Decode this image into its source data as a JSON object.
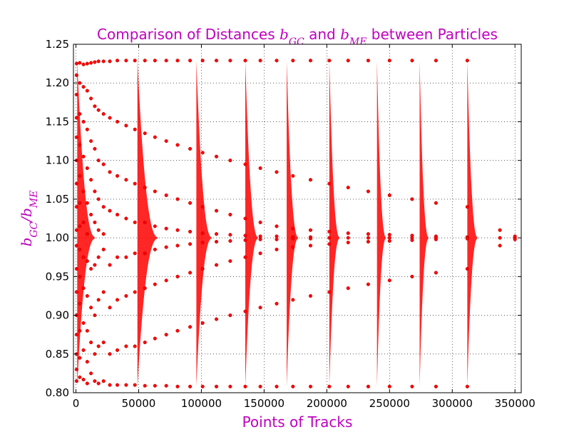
{
  "chart_data": {
    "type": "scatter",
    "title": {
      "prefix": "Comparison of Distances ",
      "var1": "b",
      "var1_sub": "GC",
      "mid": " and ",
      "var2": "b",
      "var2_sub": "ME",
      "suffix": " between Particles"
    },
    "xlabel": "Points of Tracks",
    "ylabel": {
      "num": "b",
      "num_sub": "GC",
      "slash": "/",
      "den": "b",
      "den_sub": "ME"
    },
    "xlim": [
      -2000,
      355000
    ],
    "ylim": [
      0.8,
      1.25
    ],
    "x_ticks": [
      0,
      50000,
      100000,
      150000,
      200000,
      250000,
      300000,
      350000
    ],
    "x_tick_labels": [
      "0",
      "50000",
      "100000",
      "150000",
      "200000",
      "250000",
      "300000",
      "350000"
    ],
    "y_ticks": [
      0.8,
      0.85,
      0.9,
      0.95,
      1.0,
      1.05,
      1.1,
      1.15,
      1.2,
      1.25
    ],
    "y_tick_labels": [
      "0.80",
      "0.85",
      "0.90",
      "0.95",
      "1.00",
      "1.05",
      "1.10",
      "1.15",
      "1.20",
      "1.25"
    ],
    "grid": true,
    "marker_color": "#ff0000",
    "marker_edge_color": "#b00000",
    "title_color": "#bf00bf",
    "series": [
      {
        "points": [
          [
            500,
            1.225
          ],
          [
            500,
            1.21
          ],
          [
            500,
            1.185
          ],
          [
            500,
            1.155
          ],
          [
            500,
            1.13
          ],
          [
            500,
            1.1
          ],
          [
            500,
            1.07
          ],
          [
            500,
            1.04
          ],
          [
            500,
            1.01
          ],
          [
            500,
            0.99
          ],
          [
            500,
            0.96
          ],
          [
            500,
            0.93
          ],
          [
            500,
            0.9
          ],
          [
            500,
            0.875
          ],
          [
            500,
            0.85
          ],
          [
            500,
            0.83
          ],
          [
            500,
            0.815
          ],
          [
            3000,
            1.226
          ],
          [
            3000,
            1.2
          ],
          [
            3000,
            1.16
          ],
          [
            3000,
            1.12
          ],
          [
            3000,
            1.08
          ],
          [
            3000,
            1.045
          ],
          [
            3000,
            1.015
          ],
          [
            3000,
            0.985
          ],
          [
            3000,
            0.95
          ],
          [
            3000,
            0.915
          ],
          [
            3000,
            0.88
          ],
          [
            3000,
            0.845
          ],
          [
            3000,
            0.82
          ],
          [
            6000,
            1.224
          ],
          [
            6000,
            1.195
          ],
          [
            6000,
            1.15
          ],
          [
            6000,
            1.105
          ],
          [
            6000,
            1.06
          ],
          [
            6000,
            1.02
          ],
          [
            6000,
            0.975
          ],
          [
            6000,
            0.935
          ],
          [
            6000,
            0.89
          ],
          [
            6000,
            0.855
          ],
          [
            6000,
            0.817
          ],
          [
            9000,
            1.225
          ],
          [
            9000,
            1.19
          ],
          [
            9000,
            1.14
          ],
          [
            9000,
            1.09
          ],
          [
            9000,
            1.045
          ],
          [
            9000,
            1.005
          ],
          [
            9000,
            0.97
          ],
          [
            9000,
            0.925
          ],
          [
            9000,
            0.88
          ],
          [
            9000,
            0.84
          ],
          [
            9000,
            0.812
          ],
          [
            12000,
            1.226
          ],
          [
            12000,
            1.18
          ],
          [
            12000,
            1.125
          ],
          [
            12000,
            1.075
          ],
          [
            12000,
            1.03
          ],
          [
            12000,
            0.96
          ],
          [
            12000,
            0.91
          ],
          [
            12000,
            0.865
          ],
          [
            12000,
            0.825
          ],
          [
            15000,
            1.227
          ],
          [
            15000,
            1.17
          ],
          [
            15000,
            1.115
          ],
          [
            15000,
            1.06
          ],
          [
            15000,
            1.02
          ],
          [
            15000,
            0.965
          ],
          [
            15000,
            0.9
          ],
          [
            15000,
            0.85
          ],
          [
            15000,
            0.815
          ],
          [
            18000,
            1.228
          ],
          [
            18000,
            1.165
          ],
          [
            18000,
            1.1
          ],
          [
            18000,
            1.05
          ],
          [
            18000,
            1.01
          ],
          [
            18000,
            0.975
          ],
          [
            18000,
            0.92
          ],
          [
            18000,
            0.86
          ],
          [
            18000,
            0.812
          ],
          [
            22000,
            1.228
          ],
          [
            22000,
            1.16
          ],
          [
            22000,
            1.095
          ],
          [
            22000,
            1.04
          ],
          [
            22000,
            1.005
          ],
          [
            22000,
            0.985
          ],
          [
            22000,
            0.93
          ],
          [
            22000,
            0.865
          ],
          [
            22000,
            0.815
          ],
          [
            27000,
            1.228
          ],
          [
            27000,
            1.155
          ],
          [
            27000,
            1.085
          ],
          [
            27000,
            1.035
          ],
          [
            27000,
            0.965
          ],
          [
            27000,
            0.91
          ],
          [
            27000,
            0.85
          ],
          [
            27000,
            0.81
          ],
          [
            33000,
            1.229
          ],
          [
            33000,
            1.15
          ],
          [
            33000,
            1.08
          ],
          [
            33000,
            1.03
          ],
          [
            33000,
            0.975
          ],
          [
            33000,
            0.92
          ],
          [
            33000,
            0.855
          ],
          [
            33000,
            0.81
          ],
          [
            40000,
            1.229
          ],
          [
            40000,
            1.145
          ],
          [
            40000,
            1.075
          ],
          [
            40000,
            1.025
          ],
          [
            40000,
            0.975
          ],
          [
            40000,
            0.925
          ],
          [
            40000,
            0.86
          ],
          [
            40000,
            0.81
          ],
          [
            47000,
            1.229
          ],
          [
            47000,
            1.14
          ],
          [
            47000,
            1.07
          ],
          [
            47000,
            1.02
          ],
          [
            47000,
            0.98
          ],
          [
            47000,
            0.93
          ],
          [
            47000,
            0.86
          ],
          [
            47000,
            0.81
          ],
          [
            55000,
            1.229
          ],
          [
            55000,
            1.135
          ],
          [
            55000,
            1.065
          ],
          [
            55000,
            1.02
          ],
          [
            55000,
            0.98
          ],
          [
            55000,
            0.935
          ],
          [
            55000,
            0.865
          ],
          [
            55000,
            0.809
          ],
          [
            63000,
            1.229
          ],
          [
            63000,
            1.13
          ],
          [
            63000,
            1.06
          ],
          [
            63000,
            1.015
          ],
          [
            63000,
            0.985
          ],
          [
            63000,
            0.94
          ],
          [
            63000,
            0.87
          ],
          [
            63000,
            0.809
          ],
          [
            72000,
            1.229
          ],
          [
            72000,
            1.125
          ],
          [
            72000,
            1.055
          ],
          [
            72000,
            1.012
          ],
          [
            72000,
            0.988
          ],
          [
            72000,
            0.945
          ],
          [
            72000,
            0.875
          ],
          [
            72000,
            0.809
          ],
          [
            81000,
            1.229
          ],
          [
            81000,
            1.12
          ],
          [
            81000,
            1.05
          ],
          [
            81000,
            1.01
          ],
          [
            81000,
            0.99
          ],
          [
            81000,
            0.95
          ],
          [
            81000,
            0.88
          ],
          [
            81000,
            0.808
          ],
          [
            91000,
            1.229
          ],
          [
            91000,
            1.115
          ],
          [
            91000,
            1.045
          ],
          [
            91000,
            1.008
          ],
          [
            91000,
            0.992
          ],
          [
            91000,
            0.955
          ],
          [
            91000,
            0.885
          ],
          [
            91000,
            0.808
          ],
          [
            101000,
            1.229
          ],
          [
            101000,
            1.11
          ],
          [
            101000,
            1.04
          ],
          [
            101000,
            1.006
          ],
          [
            101000,
            0.994
          ],
          [
            101000,
            0.96
          ],
          [
            101000,
            0.89
          ],
          [
            101000,
            0.808
          ],
          [
            112000,
            1.229
          ],
          [
            112000,
            1.105
          ],
          [
            112000,
            1.035
          ],
          [
            112000,
            1.005
          ],
          [
            112000,
            0.995
          ],
          [
            112000,
            0.965
          ],
          [
            112000,
            0.895
          ],
          [
            112000,
            0.808
          ],
          [
            123000,
            1.229
          ],
          [
            123000,
            1.1
          ],
          [
            123000,
            1.03
          ],
          [
            123000,
            1.004
          ],
          [
            123000,
            0.996
          ],
          [
            123000,
            0.97
          ],
          [
            123000,
            0.9
          ],
          [
            123000,
            0.808
          ],
          [
            135000,
            1.229
          ],
          [
            135000,
            1.095
          ],
          [
            135000,
            1.025
          ],
          [
            135000,
            1.003
          ],
          [
            135000,
            0.997
          ],
          [
            135000,
            0.975
          ],
          [
            135000,
            0.905
          ],
          [
            135000,
            0.808
          ],
          [
            147000,
            1.229
          ],
          [
            147000,
            1.09
          ],
          [
            147000,
            1.02
          ],
          [
            147000,
            1.002
          ],
          [
            147000,
            0.998
          ],
          [
            147000,
            0.98
          ],
          [
            147000,
            0.91
          ],
          [
            147000,
            0.808
          ],
          [
            160000,
            1.229
          ],
          [
            160000,
            1.085
          ],
          [
            160000,
            1.015
          ],
          [
            160000,
            1.002
          ],
          [
            160000,
            0.998
          ],
          [
            160000,
            0.985
          ],
          [
            160000,
            0.915
          ],
          [
            160000,
            0.808
          ],
          [
            173000,
            1.229
          ],
          [
            173000,
            1.08
          ],
          [
            173000,
            1.012
          ],
          [
            173000,
            1.001
          ],
          [
            173000,
            0.999
          ],
          [
            173000,
            0.988
          ],
          [
            173000,
            0.92
          ],
          [
            173000,
            0.808
          ],
          [
            187000,
            1.229
          ],
          [
            187000,
            1.075
          ],
          [
            187000,
            1.01
          ],
          [
            187000,
            1.001
          ],
          [
            187000,
            0.999
          ],
          [
            187000,
            0.99
          ],
          [
            187000,
            0.925
          ],
          [
            187000,
            0.808
          ],
          [
            202000,
            1.229
          ],
          [
            202000,
            1.07
          ],
          [
            202000,
            1.008
          ],
          [
            202000,
            1.0
          ],
          [
            202000,
            0.992
          ],
          [
            202000,
            0.93
          ],
          [
            202000,
            0.808
          ],
          [
            217000,
            1.229
          ],
          [
            217000,
            1.065
          ],
          [
            217000,
            1.006
          ],
          [
            217000,
            1.0
          ],
          [
            217000,
            0.994
          ],
          [
            217000,
            0.935
          ],
          [
            217000,
            0.808
          ],
          [
            233000,
            1.229
          ],
          [
            233000,
            1.06
          ],
          [
            233000,
            1.005
          ],
          [
            233000,
            1.0
          ],
          [
            233000,
            0.995
          ],
          [
            233000,
            0.94
          ],
          [
            233000,
            0.808
          ],
          [
            250000,
            1.229
          ],
          [
            250000,
            1.055
          ],
          [
            250000,
            1.004
          ],
          [
            250000,
            1.0
          ],
          [
            250000,
            0.996
          ],
          [
            250000,
            0.945
          ],
          [
            250000,
            0.808
          ],
          [
            268000,
            1.229
          ],
          [
            268000,
            1.05
          ],
          [
            268000,
            1.003
          ],
          [
            268000,
            1.0
          ],
          [
            268000,
            0.997
          ],
          [
            268000,
            0.95
          ],
          [
            268000,
            0.808
          ],
          [
            287000,
            1.229
          ],
          [
            287000,
            1.045
          ],
          [
            287000,
            1.002
          ],
          [
            287000,
            1.0
          ],
          [
            287000,
            0.998
          ],
          [
            287000,
            0.955
          ],
          [
            287000,
            0.808
          ],
          [
            312000,
            1.229
          ],
          [
            312000,
            1.04
          ],
          [
            312000,
            1.001
          ],
          [
            312000,
            1.0
          ],
          [
            312000,
            0.999
          ],
          [
            312000,
            0.96
          ],
          [
            312000,
            0.808
          ],
          [
            338000,
            1.01
          ],
          [
            338000,
            1.0
          ],
          [
            338000,
            0.99
          ],
          [
            350000,
            1.002
          ],
          [
            350000,
            1.0
          ],
          [
            350000,
            0.998
          ]
        ]
      }
    ],
    "bands": [
      {
        "x": 1000,
        "width": 14000,
        "ylim": [
          0.808,
          1.229
        ]
      },
      {
        "x": 49000,
        "width": 16000,
        "ylim": [
          0.808,
          1.229
        ]
      },
      {
        "x": 96000,
        "width": 12000,
        "ylim": [
          0.808,
          1.229
        ]
      },
      {
        "x": 135000,
        "width": 10000,
        "ylim": [
          0.808,
          1.229
        ]
      },
      {
        "x": 168000,
        "width": 9000,
        "ylim": [
          0.808,
          1.229
        ]
      },
      {
        "x": 202000,
        "width": 8000,
        "ylim": [
          0.808,
          1.229
        ]
      },
      {
        "x": 240000,
        "width": 7000,
        "ylim": [
          0.808,
          1.229
        ]
      },
      {
        "x": 274000,
        "width": 7000,
        "ylim": [
          0.808,
          1.229
        ]
      },
      {
        "x": 312000,
        "width": 8000,
        "ylim": [
          0.808,
          1.229
        ]
      }
    ]
  }
}
